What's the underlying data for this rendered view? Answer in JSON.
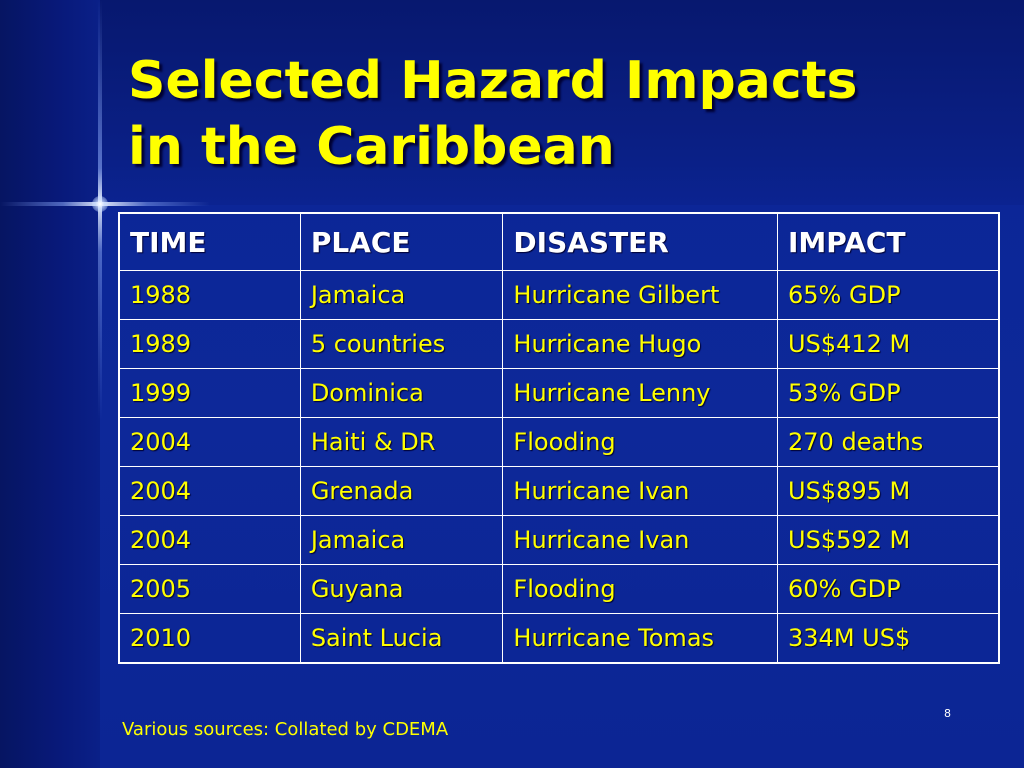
{
  "slide": {
    "title_line1": "Selected Hazard Impacts",
    "title_line2": "in the Caribbean",
    "sources": "Various sources: Collated by CDEMA",
    "page_number": "8"
  },
  "table": {
    "headers": [
      "TIME",
      "PLACE",
      "DISASTER",
      "IMPACT"
    ],
    "rows": [
      [
        "1988",
        "Jamaica",
        "Hurricane Gilbert",
        "65% GDP"
      ],
      [
        "1989",
        "5 countries",
        "Hurricane Hugo",
        "US$412 M"
      ],
      [
        "1999",
        "Dominica",
        "Hurricane Lenny",
        "53% GDP"
      ],
      [
        "2004",
        "Haiti & DR",
        "Flooding",
        "270 deaths"
      ],
      [
        "2004",
        "Grenada",
        "Hurricane Ivan",
        "US$895 M"
      ],
      [
        "2004",
        "Jamaica",
        "Hurricane Ivan",
        "US$592 M"
      ],
      [
        "2005",
        "Guyana",
        "Flooding",
        "60% GDP"
      ],
      [
        "2010",
        "Saint Lucia",
        "Hurricane Tomas",
        "334M US$"
      ]
    ]
  },
  "colors": {
    "background": "#0c2596",
    "title": "#ffff00",
    "header_text": "#ffffff",
    "cell_text": "#ffff00",
    "grid": "#ffffff"
  }
}
